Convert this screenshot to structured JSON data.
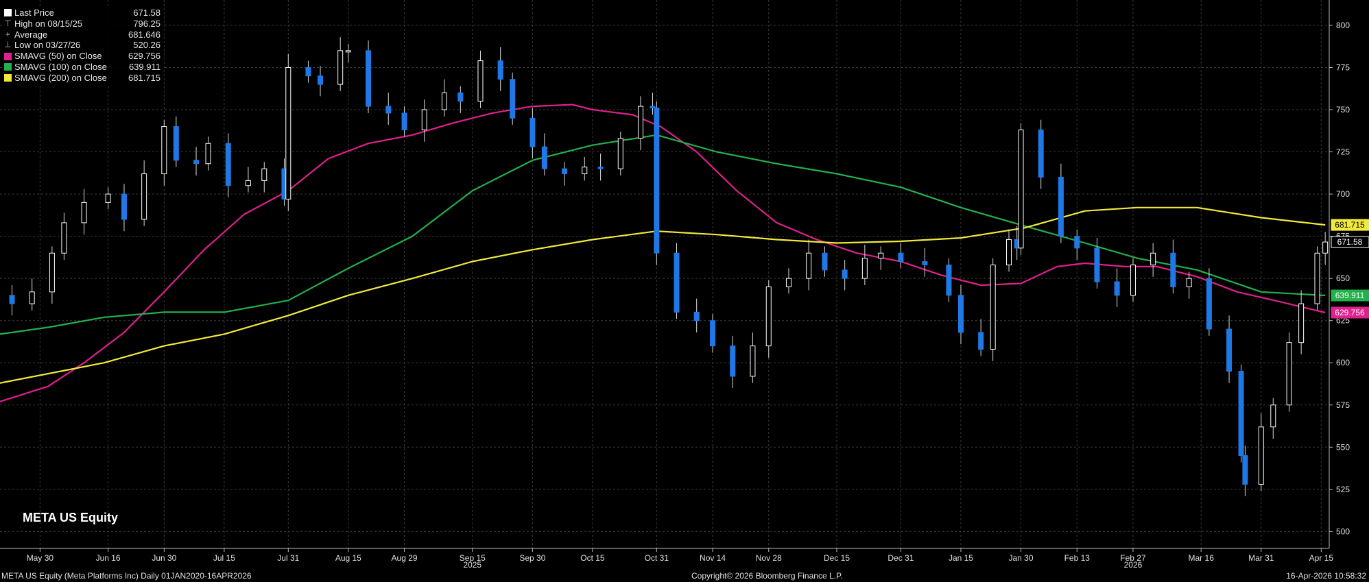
{
  "ticker_label": "META US Equity",
  "footer": {
    "left": "META US Equity (Meta Platforms Inc) Daily 01JAN2020-16APR2026",
    "center": "Copyright© 2026 Bloomberg Finance L.P.",
    "right": "16-Apr-2026 10:58:32"
  },
  "legend": [
    {
      "label": "Last Price",
      "value": "671.58",
      "color": "#ffffff",
      "glyph": "square"
    },
    {
      "label": "High on 08/15/25",
      "value": "796.25",
      "color": "#bbbbbb",
      "glyph": "high-marker-icon"
    },
    {
      "label": "Average",
      "value": "681.646",
      "color": "#bbbbbb",
      "glyph": "average-marker-icon"
    },
    {
      "label": "Low on 03/27/26",
      "value": "520.26",
      "color": "#bbbbbb",
      "glyph": "low-marker-icon"
    },
    {
      "label": "SMAVG (50)  on Close",
      "value": "629.756",
      "color": "#e0208c",
      "glyph": "square"
    },
    {
      "label": "SMAVG (100)  on Close",
      "value": "639.911",
      "color": "#22b14c",
      "glyph": "square"
    },
    {
      "label": "SMAVG (200)  on Close",
      "value": "681.715",
      "color": "#f2ea3a",
      "glyph": "square"
    }
  ],
  "chart_data": {
    "type": "candlestick",
    "ylim": [
      490,
      815
    ],
    "yticks": [
      500,
      525,
      550,
      575,
      600,
      625,
      650,
      675,
      700,
      725,
      750,
      775,
      800
    ],
    "y_axis_side": "right",
    "grid": true,
    "xlim": [
      "2025-05-20",
      "2026-04-17"
    ],
    "x_tick_labels": [
      {
        "date": "2025-05-30",
        "label": "May 30"
      },
      {
        "date": "2025-06-16",
        "label": "Jun 16"
      },
      {
        "date": "2025-06-30",
        "label": "Jun 30"
      },
      {
        "date": "2025-07-15",
        "label": "Jul 15"
      },
      {
        "date": "2025-07-31",
        "label": "Jul 31"
      },
      {
        "date": "2025-08-15",
        "label": "Aug 15"
      },
      {
        "date": "2025-08-29",
        "label": "Aug 29"
      },
      {
        "date": "2025-09-15",
        "label": "Sep 15"
      },
      {
        "date": "2025-09-30",
        "label": "Sep 30"
      },
      {
        "date": "2025-10-15",
        "label": "Oct 15"
      },
      {
        "date": "2025-10-31",
        "label": "Oct 31"
      },
      {
        "date": "2025-11-14",
        "label": "Nov 14"
      },
      {
        "date": "2025-11-28",
        "label": "Nov 28"
      },
      {
        "date": "2025-12-15",
        "label": "Dec 15"
      },
      {
        "date": "2025-12-31",
        "label": "Dec 31"
      },
      {
        "date": "2026-01-15",
        "label": "Jan 15"
      },
      {
        "date": "2026-01-30",
        "label": "Jan 30"
      },
      {
        "date": "2026-02-13",
        "label": "Feb 13"
      },
      {
        "date": "2026-02-27",
        "label": "Feb 27"
      },
      {
        "date": "2026-03-16",
        "label": "Mar 16"
      },
      {
        "date": "2026-03-31",
        "label": "Mar 31"
      },
      {
        "date": "2026-04-15",
        "label": "Apr 15"
      }
    ],
    "year_labels": [
      {
        "date": "2025-09-15",
        "label": "2025"
      },
      {
        "date": "2026-02-27",
        "label": "2026"
      }
    ],
    "price_series": {
      "name": "Last Price",
      "up_color": "#ffffff",
      "down_color": "#1e78e6",
      "close": [
        {
          "x": "2025-05-20",
          "y": 640
        },
        {
          "x": "2025-05-23",
          "y": 635
        },
        {
          "x": "2025-05-28",
          "y": 642
        },
        {
          "x": "2025-06-02",
          "y": 665
        },
        {
          "x": "2025-06-05",
          "y": 683
        },
        {
          "x": "2025-06-10",
          "y": 695
        },
        {
          "x": "2025-06-16",
          "y": 700
        },
        {
          "x": "2025-06-20",
          "y": 685
        },
        {
          "x": "2025-06-25",
          "y": 712
        },
        {
          "x": "2025-06-30",
          "y": 740
        },
        {
          "x": "2025-07-03",
          "y": 720
        },
        {
          "x": "2025-07-08",
          "y": 718
        },
        {
          "x": "2025-07-11",
          "y": 730
        },
        {
          "x": "2025-07-16",
          "y": 705
        },
        {
          "x": "2025-07-21",
          "y": 708
        },
        {
          "x": "2025-07-25",
          "y": 715
        },
        {
          "x": "2025-07-30",
          "y": 697
        },
        {
          "x": "2025-07-31",
          "y": 775
        },
        {
          "x": "2025-08-05",
          "y": 770
        },
        {
          "x": "2025-08-08",
          "y": 765
        },
        {
          "x": "2025-08-13",
          "y": 785
        },
        {
          "x": "2025-08-15",
          "y": 785
        },
        {
          "x": "2025-08-20",
          "y": 752
        },
        {
          "x": "2025-08-25",
          "y": 748
        },
        {
          "x": "2025-08-29",
          "y": 738
        },
        {
          "x": "2025-09-03",
          "y": 750
        },
        {
          "x": "2025-09-08",
          "y": 760
        },
        {
          "x": "2025-09-12",
          "y": 755
        },
        {
          "x": "2025-09-17",
          "y": 779
        },
        {
          "x": "2025-09-22",
          "y": 768
        },
        {
          "x": "2025-09-25",
          "y": 745
        },
        {
          "x": "2025-09-30",
          "y": 728
        },
        {
          "x": "2025-10-03",
          "y": 715
        },
        {
          "x": "2025-10-08",
          "y": 712
        },
        {
          "x": "2025-10-13",
          "y": 716
        },
        {
          "x": "2025-10-17",
          "y": 715
        },
        {
          "x": "2025-10-22",
          "y": 733
        },
        {
          "x": "2025-10-27",
          "y": 752
        },
        {
          "x": "2025-10-30",
          "y": 751
        },
        {
          "x": "2025-10-31",
          "y": 665
        },
        {
          "x": "2025-11-05",
          "y": 630
        },
        {
          "x": "2025-11-10",
          "y": 625
        },
        {
          "x": "2025-11-14",
          "y": 610
        },
        {
          "x": "2025-11-19",
          "y": 592
        },
        {
          "x": "2025-11-24",
          "y": 610
        },
        {
          "x": "2025-11-28",
          "y": 645
        },
        {
          "x": "2025-12-03",
          "y": 650
        },
        {
          "x": "2025-12-08",
          "y": 665
        },
        {
          "x": "2025-12-12",
          "y": 655
        },
        {
          "x": "2025-12-17",
          "y": 650
        },
        {
          "x": "2025-12-22",
          "y": 662
        },
        {
          "x": "2025-12-26",
          "y": 665
        },
        {
          "x": "2025-12-31",
          "y": 660
        },
        {
          "x": "2026-01-06",
          "y": 658
        },
        {
          "x": "2026-01-12",
          "y": 640
        },
        {
          "x": "2026-01-15",
          "y": 618
        },
        {
          "x": "2026-01-20",
          "y": 608
        },
        {
          "x": "2026-01-23",
          "y": 658
        },
        {
          "x": "2026-01-27",
          "y": 673
        },
        {
          "x": "2026-01-29",
          "y": 668
        },
        {
          "x": "2026-01-30",
          "y": 738
        },
        {
          "x": "2026-02-04",
          "y": 710
        },
        {
          "x": "2026-02-09",
          "y": 675
        },
        {
          "x": "2026-02-13",
          "y": 668
        },
        {
          "x": "2026-02-18",
          "y": 648
        },
        {
          "x": "2026-02-23",
          "y": 640
        },
        {
          "x": "2026-02-27",
          "y": 658
        },
        {
          "x": "2026-03-04",
          "y": 665
        },
        {
          "x": "2026-03-09",
          "y": 645
        },
        {
          "x": "2026-03-13",
          "y": 650
        },
        {
          "x": "2026-03-18",
          "y": 620
        },
        {
          "x": "2026-03-23",
          "y": 595
        },
        {
          "x": "2026-03-26",
          "y": 545
        },
        {
          "x": "2026-03-27",
          "y": 528
        },
        {
          "x": "2026-03-31",
          "y": 562
        },
        {
          "x": "2026-04-03",
          "y": 575
        },
        {
          "x": "2026-04-07",
          "y": 612
        },
        {
          "x": "2026-04-10",
          "y": 635
        },
        {
          "x": "2026-04-14",
          "y": 665
        },
        {
          "x": "2026-04-16",
          "y": 671.58
        }
      ]
    },
    "series": [
      {
        "name": "SMAVG (50)  on Close",
        "color": "#e0208c",
        "points": [
          {
            "x": "2025-05-20",
            "y": 577
          },
          {
            "x": "2025-06-01",
            "y": 586
          },
          {
            "x": "2025-06-10",
            "y": 600
          },
          {
            "x": "2025-06-20",
            "y": 618
          },
          {
            "x": "2025-06-30",
            "y": 642
          },
          {
            "x": "2025-07-10",
            "y": 667
          },
          {
            "x": "2025-07-20",
            "y": 688
          },
          {
            "x": "2025-07-31",
            "y": 702
          },
          {
            "x": "2025-08-10",
            "y": 721
          },
          {
            "x": "2025-08-20",
            "y": 730
          },
          {
            "x": "2025-08-31",
            "y": 735
          },
          {
            "x": "2025-09-10",
            "y": 742
          },
          {
            "x": "2025-09-20",
            "y": 748
          },
          {
            "x": "2025-09-30",
            "y": 752
          },
          {
            "x": "2025-10-10",
            "y": 753
          },
          {
            "x": "2025-10-15",
            "y": 750
          },
          {
            "x": "2025-10-25",
            "y": 747
          },
          {
            "x": "2025-11-01",
            "y": 740
          },
          {
            "x": "2025-11-10",
            "y": 725
          },
          {
            "x": "2025-11-20",
            "y": 702
          },
          {
            "x": "2025-11-30",
            "y": 683
          },
          {
            "x": "2025-12-10",
            "y": 673
          },
          {
            "x": "2025-12-20",
            "y": 665
          },
          {
            "x": "2025-12-31",
            "y": 660
          },
          {
            "x": "2026-01-10",
            "y": 652
          },
          {
            "x": "2026-01-20",
            "y": 646
          },
          {
            "x": "2026-01-30",
            "y": 647
          },
          {
            "x": "2026-02-08",
            "y": 657
          },
          {
            "x": "2026-02-15",
            "y": 659
          },
          {
            "x": "2026-02-25",
            "y": 657
          },
          {
            "x": "2026-03-05",
            "y": 657
          },
          {
            "x": "2026-03-15",
            "y": 651
          },
          {
            "x": "2026-03-25",
            "y": 642
          },
          {
            "x": "2026-04-05",
            "y": 636
          },
          {
            "x": "2026-04-16",
            "y": 629.756
          }
        ]
      },
      {
        "name": "SMAVG (100)  on Close",
        "color": "#22b14c",
        "points": [
          {
            "x": "2025-05-20",
            "y": 617
          },
          {
            "x": "2025-06-01",
            "y": 621
          },
          {
            "x": "2025-06-15",
            "y": 627
          },
          {
            "x": "2025-06-30",
            "y": 630
          },
          {
            "x": "2025-07-15",
            "y": 630
          },
          {
            "x": "2025-07-31",
            "y": 637
          },
          {
            "x": "2025-08-15",
            "y": 656
          },
          {
            "x": "2025-08-31",
            "y": 675
          },
          {
            "x": "2025-09-15",
            "y": 702
          },
          {
            "x": "2025-09-30",
            "y": 720
          },
          {
            "x": "2025-10-15",
            "y": 729
          },
          {
            "x": "2025-10-31",
            "y": 735
          },
          {
            "x": "2025-11-15",
            "y": 725
          },
          {
            "x": "2025-11-30",
            "y": 718
          },
          {
            "x": "2025-12-15",
            "y": 712
          },
          {
            "x": "2025-12-31",
            "y": 704
          },
          {
            "x": "2026-01-15",
            "y": 692
          },
          {
            "x": "2026-01-31",
            "y": 681
          },
          {
            "x": "2026-02-15",
            "y": 671
          },
          {
            "x": "2026-02-28",
            "y": 662
          },
          {
            "x": "2026-03-15",
            "y": 655
          },
          {
            "x": "2026-03-31",
            "y": 642
          },
          {
            "x": "2026-04-16",
            "y": 639.911
          }
        ]
      },
      {
        "name": "SMAVG (200)  on Close",
        "color": "#f2ea3a",
        "points": [
          {
            "x": "2025-05-20",
            "y": 588
          },
          {
            "x": "2025-06-15",
            "y": 600
          },
          {
            "x": "2025-06-30",
            "y": 610
          },
          {
            "x": "2025-07-15",
            "y": 617
          },
          {
            "x": "2025-07-31",
            "y": 628
          },
          {
            "x": "2025-08-15",
            "y": 640
          },
          {
            "x": "2025-08-31",
            "y": 650
          },
          {
            "x": "2025-09-15",
            "y": 660
          },
          {
            "x": "2025-09-30",
            "y": 667
          },
          {
            "x": "2025-10-15",
            "y": 673
          },
          {
            "x": "2025-10-31",
            "y": 678
          },
          {
            "x": "2025-11-15",
            "y": 676
          },
          {
            "x": "2025-11-30",
            "y": 673
          },
          {
            "x": "2025-12-15",
            "y": 671
          },
          {
            "x": "2025-12-31",
            "y": 672
          },
          {
            "x": "2026-01-15",
            "y": 674
          },
          {
            "x": "2026-01-31",
            "y": 680
          },
          {
            "x": "2026-02-15",
            "y": 690
          },
          {
            "x": "2026-02-28",
            "y": 692
          },
          {
            "x": "2026-03-15",
            "y": 692
          },
          {
            "x": "2026-03-31",
            "y": 686
          },
          {
            "x": "2026-04-16",
            "y": 681.715
          }
        ]
      }
    ],
    "right_value_tags": [
      {
        "value": 681.715,
        "label": "681.715",
        "bg": "#f2ea3a",
        "fg": "#000000"
      },
      {
        "value": 671.58,
        "label": "671.58",
        "bg": "#000000",
        "fg": "#ffffff",
        "border": "#ffffff"
      },
      {
        "value": 639.911,
        "label": "639.911",
        "bg": "#22b14c",
        "fg": "#ffffff"
      },
      {
        "value": 629.756,
        "label": "629.756",
        "bg": "#e0208c",
        "fg": "#ffffff"
      }
    ]
  }
}
